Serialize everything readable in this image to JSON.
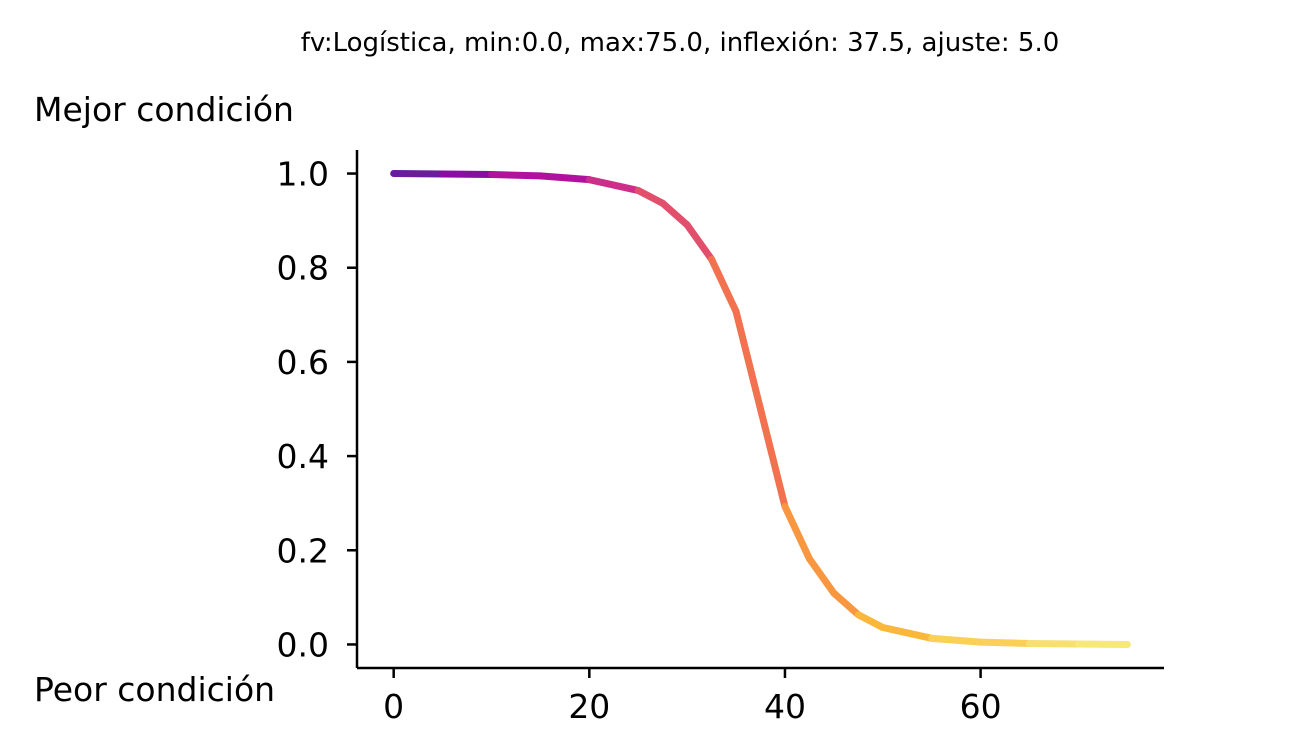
{
  "chart_data": {
    "type": "line",
    "title": "fv:Logística, min:0.0, max:75.0, inflexión: 37.5, ajuste: 5.0",
    "ylabel_top": "Mejor condición",
    "ylabel_bottom": "Peor condición",
    "xlabel": "",
    "xlim": [
      -3.75,
      78.75
    ],
    "ylim": [
      -0.05,
      1.05
    ],
    "xticks": [
      0,
      20,
      40,
      60
    ],
    "xtick_labels": [
      "0",
      "20",
      "40",
      "60"
    ],
    "yticks": [
      0.0,
      0.2,
      0.4,
      0.6,
      0.8,
      1.0
    ],
    "ytick_labels": [
      "0.0",
      "0.2",
      "0.4",
      "0.6",
      "0.8",
      "1.0"
    ],
    "grid": false,
    "colormap": "plasma",
    "x": [
      0,
      5,
      10,
      15,
      20,
      25,
      27.5,
      30,
      32.5,
      35,
      37.5,
      40,
      42.5,
      45,
      47.5,
      50,
      55,
      60,
      65,
      70,
      75
    ],
    "y": [
      1.0,
      0.999,
      0.998,
      0.995,
      0.987,
      0.964,
      0.937,
      0.891,
      0.818,
      0.707,
      0.5,
      0.293,
      0.182,
      0.109,
      0.063,
      0.036,
      0.013,
      0.005,
      0.002,
      0.001,
      0.0
    ],
    "line_colors": [
      "#6a1c9a",
      "#8a0da3",
      "#b0129e",
      "#cb2f8a",
      "#e24f6d",
      "#f2714f",
      "#f99640",
      "#fbb73a",
      "#fad056",
      "#f8e06f",
      "#f7e87a"
    ]
  }
}
